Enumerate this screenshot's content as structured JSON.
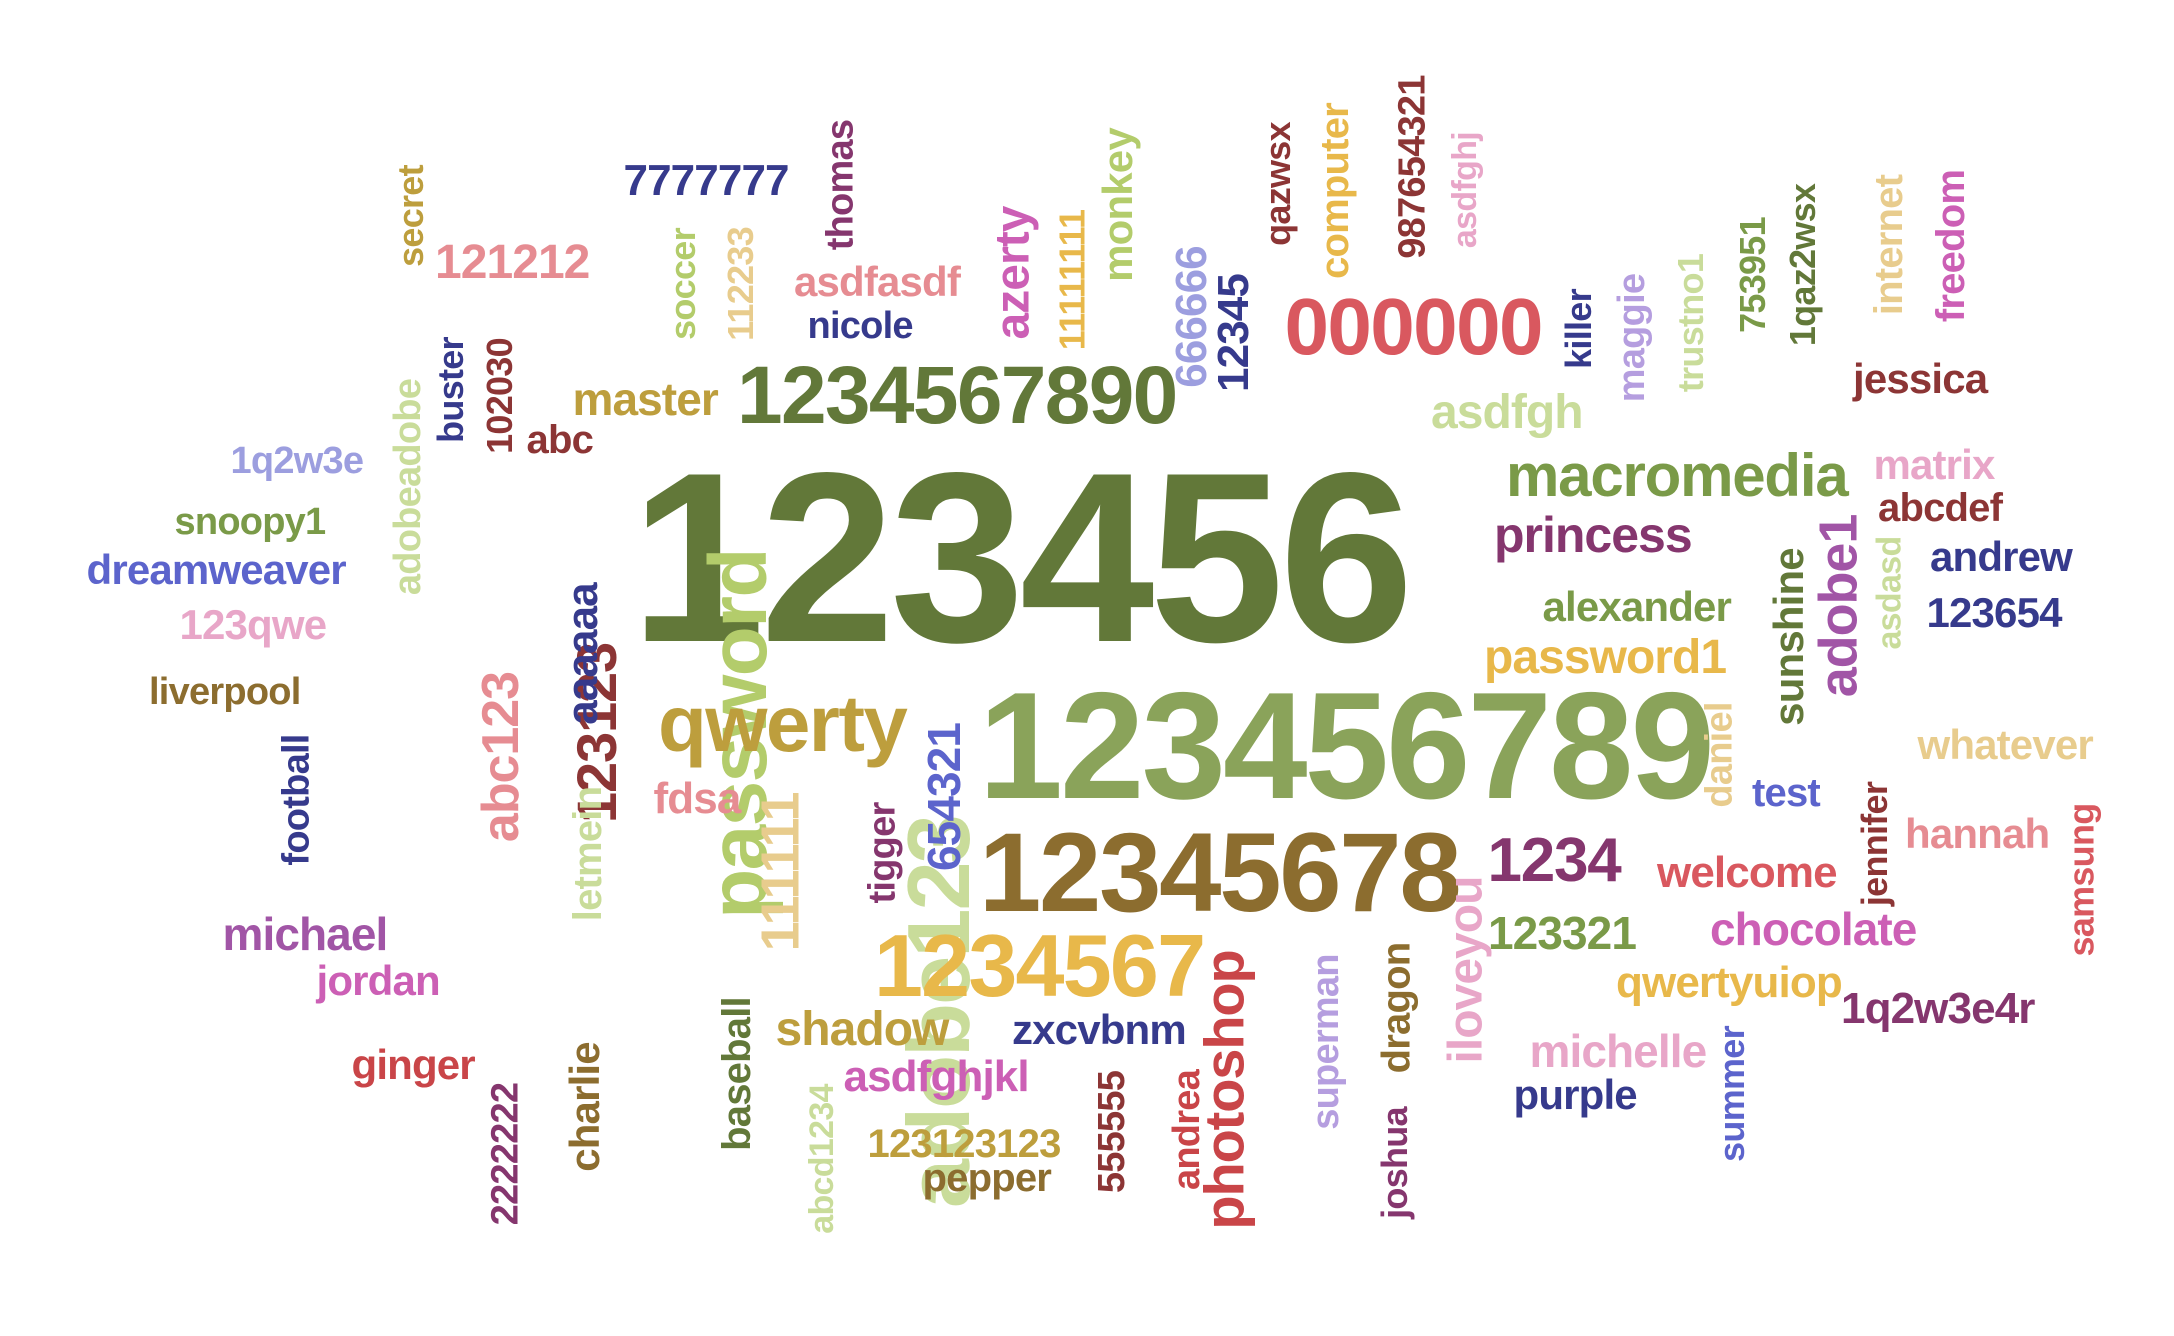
{
  "palette": {
    "olive_dark": "#627839",
    "olive": "#8aa35a",
    "lime": "#b3cc6b",
    "lime_pale": "#c9dc9a",
    "green_mid": "#7a9a48",
    "mustard": "#bd9e3d",
    "brown": "#8c6d2f",
    "gold": "#e8b84a",
    "tan": "#e8cc8d",
    "red": "#d9585f",
    "crimson": "#c94548",
    "maroon": "#8c3535",
    "pink": "#e68c92",
    "pink_pale": "#e8a6c8",
    "magenta": "#cc5fb5",
    "plum": "#85366e",
    "violet": "#a155a6",
    "blue": "#5c64cc",
    "navy": "#363a8c",
    "periwinkle": "#9c9edf",
    "lavender": "#b59edf"
  },
  "words": [
    {
      "id": "w-123456",
      "text": "123456",
      "color": "olive_dark"
    },
    {
      "id": "w-123456789",
      "text": "123456789",
      "color": "olive"
    },
    {
      "id": "w-password",
      "text": "password",
      "color": "lime"
    },
    {
      "id": "w-12345678",
      "text": "12345678",
      "color": "brown"
    },
    {
      "id": "w-adobe123",
      "text": "adobe123",
      "color": "lime_pale"
    },
    {
      "id": "w-1234567890",
      "text": "1234567890",
      "color": "olive_dark"
    },
    {
      "id": "w-qwerty",
      "text": "qwerty",
      "color": "mustard"
    },
    {
      "id": "w-1234567",
      "text": "1234567",
      "color": "gold"
    },
    {
      "id": "w-000000",
      "text": "000000",
      "color": "red"
    },
    {
      "id": "w-photoshop",
      "text": "photoshop",
      "color": "crimson"
    },
    {
      "id": "w-macromedia",
      "text": "macromedia",
      "color": "green_mid"
    },
    {
      "id": "w-123123",
      "text": "123123",
      "color": "maroon"
    },
    {
      "id": "w-111111",
      "text": "111111",
      "color": "tan"
    },
    {
      "id": "w-abc123",
      "text": "abc123",
      "color": "pink"
    },
    {
      "id": "w-1234",
      "text": "1234",
      "color": "plum"
    },
    {
      "id": "w-princess",
      "text": "princess",
      "color": "plum"
    },
    {
      "id": "w-password1",
      "text": "password1",
      "color": "gold"
    },
    {
      "id": "w-654321",
      "text": "654321",
      "color": "blue"
    },
    {
      "id": "w-666666",
      "text": "666666",
      "color": "periwinkle"
    },
    {
      "id": "w-12345",
      "text": "12345",
      "color": "navy"
    },
    {
      "id": "w-azerty",
      "text": "azerty",
      "color": "magenta"
    },
    {
      "id": "w-monkey",
      "text": "monkey",
      "color": "lime"
    },
    {
      "id": "w-thomas",
      "text": "thomas",
      "color": "plum"
    },
    {
      "id": "w-7777777",
      "text": "7777777",
      "color": "navy"
    },
    {
      "id": "w-soccer",
      "text": "soccer",
      "color": "lime"
    },
    {
      "id": "w-112233",
      "text": "112233",
      "color": "tan"
    },
    {
      "id": "w-asdfasdf",
      "text": "asdfasdf",
      "color": "pink"
    },
    {
      "id": "w-nicole",
      "text": "nicole",
      "color": "navy"
    },
    {
      "id": "w-11111111",
      "text": "11111111",
      "color": "gold"
    },
    {
      "id": "w-qazwsx",
      "text": "qazwsx",
      "color": "maroon"
    },
    {
      "id": "w-computer",
      "text": "computer",
      "color": "gold"
    },
    {
      "id": "w-987654321",
      "text": "987654321",
      "color": "maroon"
    },
    {
      "id": "w-asdfghj",
      "text": "asdfghj",
      "color": "pink_pale"
    },
    {
      "id": "w-secret",
      "text": "secret",
      "color": "mustard"
    },
    {
      "id": "w-121212",
      "text": "121212",
      "color": "pink"
    },
    {
      "id": "w-master",
      "text": "master",
      "color": "mustard"
    },
    {
      "id": "w-abc",
      "text": "abc",
      "color": "maroon"
    },
    {
      "id": "w-buster",
      "text": "buster",
      "color": "navy"
    },
    {
      "id": "w-102030",
      "text": "102030",
      "color": "maroon"
    },
    {
      "id": "w-adobeadobe",
      "text": "adobeadobe",
      "color": "lime_pale"
    },
    {
      "id": "w-1q2w3e",
      "text": "1q2w3e",
      "color": "periwinkle"
    },
    {
      "id": "w-snoopy1",
      "text": "snoopy1",
      "color": "green_mid"
    },
    {
      "id": "w-dreamweaver",
      "text": "dreamweaver",
      "color": "blue"
    },
    {
      "id": "w-123qwe",
      "text": "123qwe",
      "color": "pink_pale"
    },
    {
      "id": "w-liverpool",
      "text": "liverpool",
      "color": "brown"
    },
    {
      "id": "w-football",
      "text": "football",
      "color": "navy"
    },
    {
      "id": "w-aaaaaa",
      "text": "aaaaaa",
      "color": "navy"
    },
    {
      "id": "w-letmein",
      "text": "letmein",
      "color": "lime_pale"
    },
    {
      "id": "w-fdsa",
      "text": "fdsa",
      "color": "pink"
    },
    {
      "id": "w-tigger",
      "text": "tigger",
      "color": "plum"
    },
    {
      "id": "w-michael",
      "text": "michael",
      "color": "violet"
    },
    {
      "id": "w-jordan",
      "text": "jordan",
      "color": "magenta"
    },
    {
      "id": "w-ginger",
      "text": "ginger",
      "color": "crimson"
    },
    {
      "id": "w-2222222",
      "text": "2222222",
      "color": "plum"
    },
    {
      "id": "w-charlie",
      "text": "charlie",
      "color": "brown"
    },
    {
      "id": "w-baseball",
      "text": "baseball",
      "color": "olive_dark"
    },
    {
      "id": "w-abcd1234",
      "text": "abcd1234",
      "color": "lime_pale"
    },
    {
      "id": "w-shadow",
      "text": "shadow",
      "color": "mustard"
    },
    {
      "id": "w-asdfghjkl",
      "text": "asdfghjkl",
      "color": "magenta"
    },
    {
      "id": "w-123123123",
      "text": "123123123",
      "color": "mustard"
    },
    {
      "id": "w-pepper",
      "text": "pepper",
      "color": "brown"
    },
    {
      "id": "w-555555",
      "text": "555555",
      "color": "maroon"
    },
    {
      "id": "w-andrea",
      "text": "andrea",
      "color": "crimson"
    },
    {
      "id": "w-zxcvbnm",
      "text": "zxcvbnm",
      "color": "navy"
    },
    {
      "id": "w-superman",
      "text": "superman",
      "color": "lavender"
    },
    {
      "id": "w-dragon",
      "text": "dragon",
      "color": "brown"
    },
    {
      "id": "w-joshua",
      "text": "joshua",
      "color": "plum"
    },
    {
      "id": "w-iloveyou",
      "text": "iloveyou",
      "color": "pink_pale"
    },
    {
      "id": "w-asdfgh",
      "text": "asdfgh",
      "color": "lime_pale"
    },
    {
      "id": "w-killer",
      "text": "killer",
      "color": "navy"
    },
    {
      "id": "w-maggie",
      "text": "maggie",
      "color": "lavender"
    },
    {
      "id": "w-trustno1",
      "text": "trustno1",
      "color": "lime_pale"
    },
    {
      "id": "w-753951",
      "text": "753951",
      "color": "green_mid"
    },
    {
      "id": "w-1qaz2wsx",
      "text": "1qaz2wsx",
      "color": "olive_dark"
    },
    {
      "id": "w-internet",
      "text": "internet",
      "color": "tan"
    },
    {
      "id": "w-freedom",
      "text": "freedom",
      "color": "magenta"
    },
    {
      "id": "w-jessica",
      "text": "jessica",
      "color": "maroon"
    },
    {
      "id": "w-matrix",
      "text": "matrix",
      "color": "pink_pale"
    },
    {
      "id": "w-abcdef",
      "text": "abcdef",
      "color": "maroon"
    },
    {
      "id": "w-andrew",
      "text": "andrew",
      "color": "navy"
    },
    {
      "id": "w-123654",
      "text": "123654",
      "color": "navy"
    },
    {
      "id": "w-asdasd",
      "text": "asdasd",
      "color": "lime_pale"
    },
    {
      "id": "w-sunshine",
      "text": "sunshine",
      "color": "olive_dark"
    },
    {
      "id": "w-adobe1",
      "text": "adobe1",
      "color": "violet"
    },
    {
      "id": "w-alexander",
      "text": "alexander",
      "color": "green_mid"
    },
    {
      "id": "w-daniel",
      "text": "daniel",
      "color": "tan"
    },
    {
      "id": "w-test",
      "text": "test",
      "color": "blue"
    },
    {
      "id": "w-jennifer",
      "text": "jennifer",
      "color": "maroon"
    },
    {
      "id": "w-whatever",
      "text": "whatever",
      "color": "tan"
    },
    {
      "id": "w-hannah",
      "text": "hannah",
      "color": "pink"
    },
    {
      "id": "w-samsung",
      "text": "samsung",
      "color": "red"
    },
    {
      "id": "w-welcome",
      "text": "welcome",
      "color": "red"
    },
    {
      "id": "w-123321",
      "text": "123321",
      "color": "green_mid"
    },
    {
      "id": "w-chocolate",
      "text": "chocolate",
      "color": "magenta"
    },
    {
      "id": "w-qwertyuiop",
      "text": "qwertyuiop",
      "color": "gold"
    },
    {
      "id": "w-1q2w3e4r",
      "text": "1q2w3e4r",
      "color": "plum"
    },
    {
      "id": "w-michelle",
      "text": "michelle",
      "color": "pink_pale"
    },
    {
      "id": "w-purple",
      "text": "purple",
      "color": "navy"
    },
    {
      "id": "w-summer",
      "text": "summer",
      "color": "blue"
    }
  ]
}
